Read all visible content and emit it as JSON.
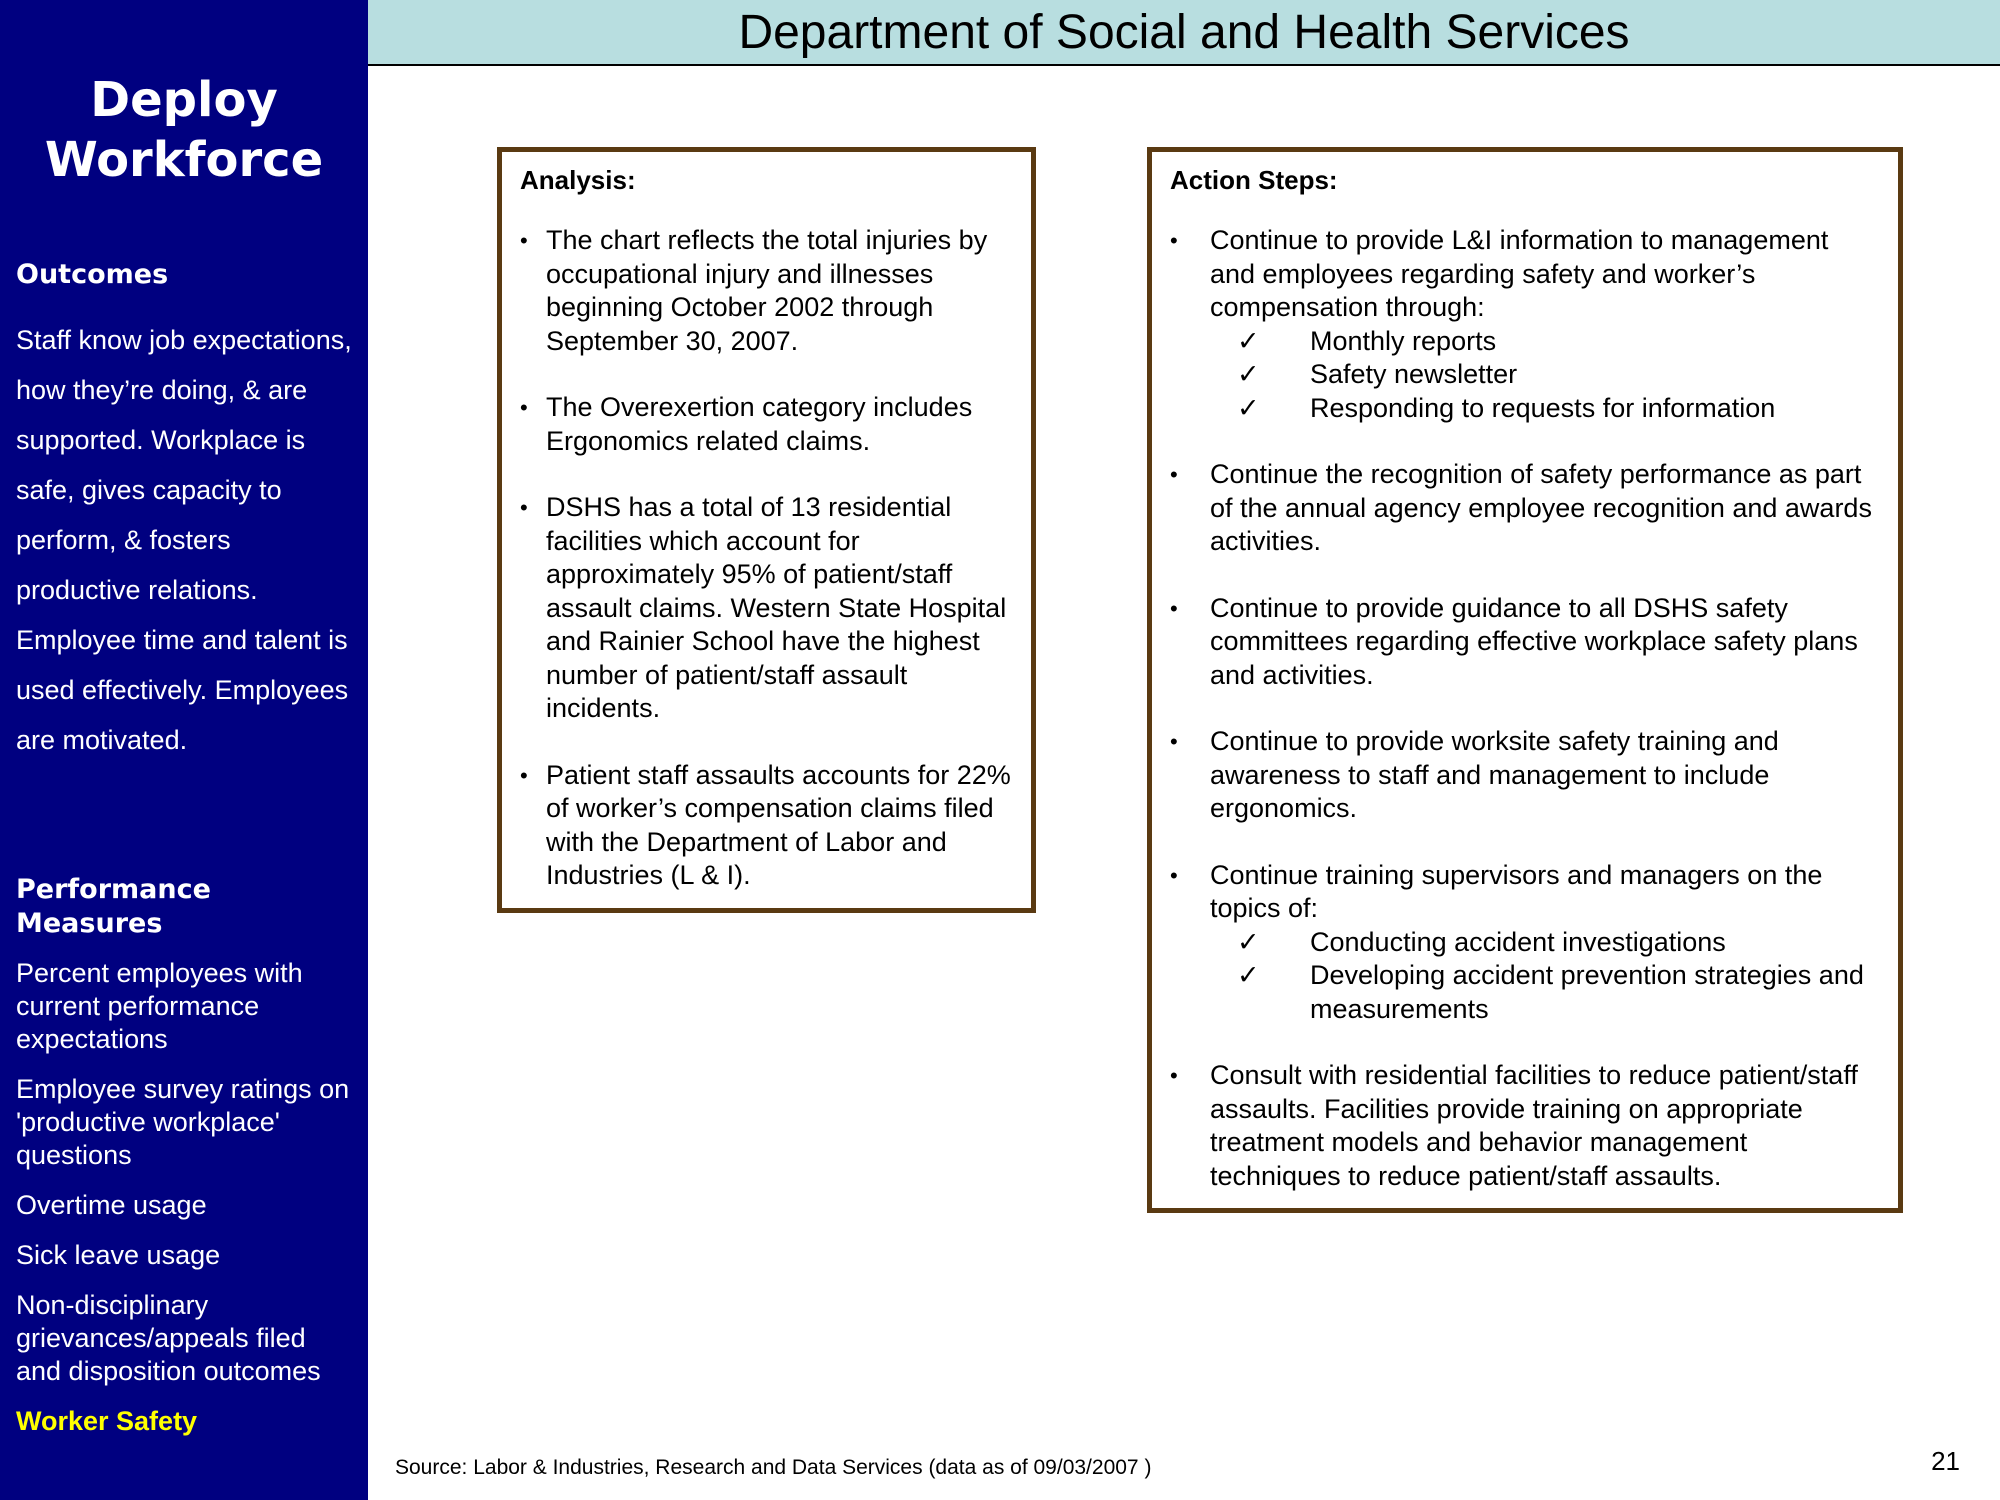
{
  "header": {
    "title": "Department of Social and Health Services"
  },
  "sidebar": {
    "title_line1": "Deploy",
    "title_line2": "Workforce",
    "outcomes_heading": "Outcomes",
    "outcomes_text": "Staff know job expectations, how they’re doing, & are supported. Workplace is safe, gives capacity to perform, & fosters productive relations. Employee time and talent is used effectively. Employees are motivated.",
    "measures_heading": "Performance Measures",
    "measures": [
      "Percent employees with current performance expectations",
      "Employee survey ratings on 'productive workplace' questions",
      "Overtime usage",
      "Sick leave usage",
      "Non-disciplinary grievances/appeals filed and disposition outcomes",
      "Worker Safety"
    ],
    "active_measure_color": "#ffff00"
  },
  "analysis": {
    "title": "Analysis:",
    "bullets": [
      "The chart reflects the total injuries by occupational injury and  illnesses beginning October 2002 through September 30, 2007.",
      "The Overexertion category includes Ergonomics related claims.",
      "DSHS has a total of 13 residential facilities which account for approximately 95% of patient/staff assault claims.  Western State Hospital and Rainier School have the highest number of patient/staff assault incidents.",
      "Patient staff assaults accounts for 22% of worker’s compensation claims filed with the Department of Labor and Industries (L & I)."
    ]
  },
  "actions": {
    "title": "Action Steps:",
    "bullet_char": "•",
    "check_char": "✓",
    "items": [
      {
        "text": "Continue to provide L&I information to management and employees regarding safety and worker’s compensation through:",
        "checks": [
          "Monthly reports",
          "Safety newsletter",
          "Responding to requests for information"
        ]
      },
      {
        "text": "Continue the recognition of safety performance as part of the annual agency employee recognition and awards activities.",
        "checks": []
      },
      {
        "text": "Continue to provide guidance to all DSHS safety committees regarding effective workplace safety plans and activities.",
        "checks": []
      },
      {
        "text": "Continue to provide worksite safety training and awareness to staff and management to include ergonomics.",
        "checks": []
      },
      {
        "text": "Continue training supervisors and managers on the topics of:",
        "checks": [
          "Conducting accident investigations",
          "Developing accident prevention strategies and measurements"
        ]
      },
      {
        "text": "Consult with residential facilities to reduce patient/staff assaults. Facilities provide training on appropriate treatment models and behavior management techniques to reduce patient/staff assaults.",
        "checks": []
      }
    ]
  },
  "footer": {
    "source": "Source: Labor & Industries, Research and Data Services (data as of 09/03/2007 )",
    "page_number": "21"
  },
  "colors": {
    "sidebar_bg": "#000080",
    "header_bg": "#b8dee0",
    "box_border": "#5a3a12"
  }
}
